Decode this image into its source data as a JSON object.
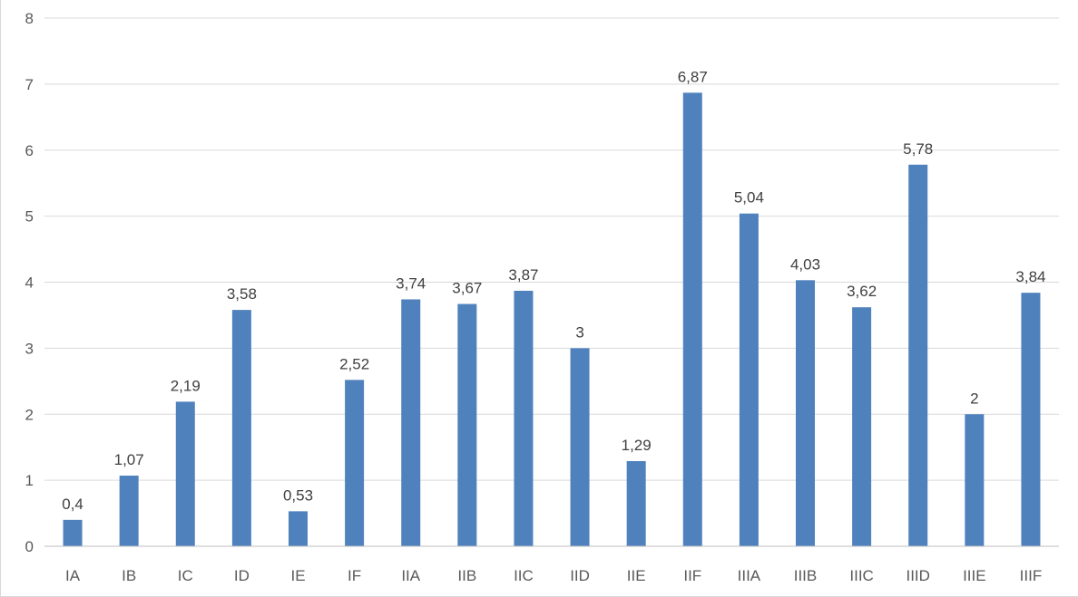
{
  "chart_data": {
    "type": "bar",
    "title": "",
    "xlabel": "",
    "ylabel": "",
    "categories": [
      "IA",
      "IB",
      "IC",
      "ID",
      "IE",
      "IF",
      "IIA",
      "IIB",
      "IIC",
      "IID",
      "IIE",
      "IIF",
      "IIIA",
      "IIIB",
      "IIIC",
      "IIID",
      "IIIE",
      "IIIF"
    ],
    "values": [
      0.4,
      1.07,
      2.19,
      3.58,
      0.53,
      2.52,
      3.74,
      3.67,
      3.87,
      3,
      1.29,
      6.87,
      5.04,
      4.03,
      3.62,
      5.78,
      2,
      3.84
    ],
    "data_labels": [
      "0,4",
      "1,07",
      "2,19",
      "3,58",
      "0,53",
      "2,52",
      "3,74",
      "3,67",
      "3,87",
      "3",
      "1,29",
      "6,87",
      "5,04",
      "4,03",
      "3,62",
      "5,78",
      "2",
      "3,84"
    ],
    "ylim": [
      0,
      8
    ],
    "yticks": [
      "0",
      "1",
      "2",
      "3",
      "4",
      "5",
      "6",
      "7",
      "8"
    ],
    "grid": true,
    "legend": "none",
    "colors": {
      "bar": "#4f81bd",
      "grid": "#d9d9d9",
      "axis": "#bfbfbf",
      "label": "#595959"
    }
  }
}
